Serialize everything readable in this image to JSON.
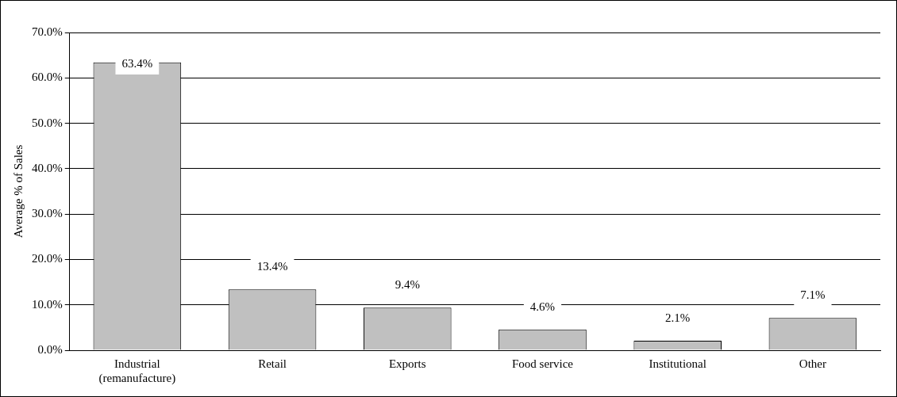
{
  "chart_data": {
    "type": "bar",
    "ylabel": "Average % of Sales",
    "categories": [
      "Industrial\n(remanufacture)",
      "Retail",
      "Exports",
      "Food service",
      "Institutional",
      "Other"
    ],
    "values": [
      63.4,
      13.4,
      9.4,
      4.6,
      2.1,
      7.1
    ],
    "value_labels": [
      "63.4%",
      "13.4%",
      "9.4%",
      "4.6%",
      "2.1%",
      "7.1%"
    ],
    "color": "#c0c0c0",
    "ylim": [
      0,
      70
    ],
    "yticks": [
      {
        "value": 0,
        "label": "0.0%"
      },
      {
        "value": 10,
        "label": "10.0%"
      },
      {
        "value": 20,
        "label": "20.0%"
      },
      {
        "value": 30,
        "label": "30.0%"
      },
      {
        "value": 40,
        "label": "40.0%"
      },
      {
        "value": 50,
        "label": "50.0%"
      },
      {
        "value": 60,
        "label": "60.0%"
      },
      {
        "value": 70,
        "label": "70.0%"
      }
    ],
    "grid": "y"
  }
}
